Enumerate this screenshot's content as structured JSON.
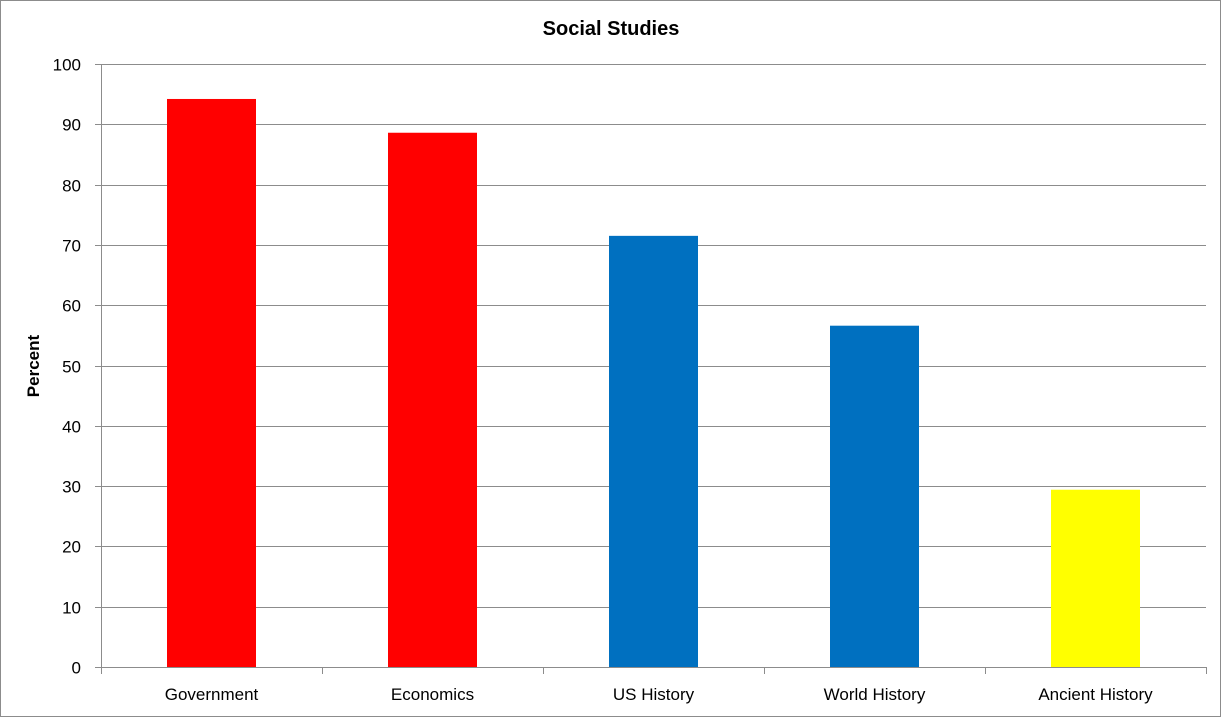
{
  "chart_data": {
    "type": "bar",
    "title": "Social Studies",
    "xlabel": "",
    "ylabel": "Percent",
    "categories": [
      "Government",
      "Economics",
      "US History",
      "World History",
      "Ancient History"
    ],
    "values": [
      94.2,
      88.6,
      71.5,
      56.6,
      29.4
    ],
    "colors": [
      "#ff0000",
      "#ff0000",
      "#0070c0",
      "#0070c0",
      "#ffff00"
    ],
    "ylim": [
      0,
      100
    ],
    "yticks": [
      0,
      10,
      20,
      30,
      40,
      50,
      60,
      70,
      80,
      90,
      100
    ],
    "grid": true,
    "legend": "none"
  }
}
